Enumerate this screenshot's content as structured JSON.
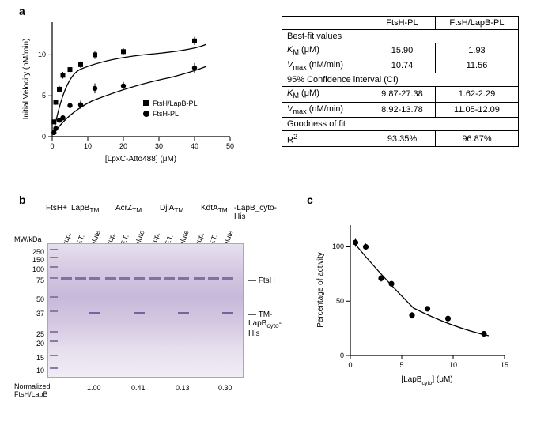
{
  "panelA": {
    "label": "a",
    "chart": {
      "type": "scatter",
      "xlabel": "[LpxC-Atto488] (μM)",
      "ylabel": "Initial Velocity (nM/min)",
      "xlim": [
        0,
        50
      ],
      "ylim": [
        0,
        14
      ],
      "xticks": [
        0,
        10,
        20,
        30,
        40,
        50
      ],
      "yticks": [
        0,
        5,
        10
      ],
      "label_fontsize": 10,
      "tick_fontsize": 9,
      "series": [
        {
          "name": "FtsH/LapB-PL",
          "marker": "square",
          "color": "#000000",
          "x": [
            0.5,
            1,
            2,
            3,
            5,
            8,
            12,
            20,
            40
          ],
          "y": [
            1.8,
            4.2,
            5.8,
            7.5,
            8.2,
            8.8,
            10.0,
            10.4,
            11.7
          ],
          "yerr": [
            0.3,
            0.3,
            0.4,
            0.4,
            0.3,
            0.4,
            0.5,
            0.4,
            0.5
          ]
        },
        {
          "name": "FtsH-PL",
          "marker": "circle",
          "color": "#000000",
          "x": [
            0.5,
            1,
            2,
            3,
            5,
            8,
            12,
            20,
            40
          ],
          "y": [
            0.5,
            1.0,
            2.0,
            2.3,
            3.8,
            3.9,
            5.9,
            6.2,
            8.4
          ],
          "yerr": [
            0.2,
            0.2,
            0.2,
            0.3,
            0.6,
            0.5,
            0.6,
            0.5,
            0.6
          ]
        }
      ],
      "legend_pos": "inside-right",
      "curve_color": "#000000",
      "background": "#ffffff"
    },
    "table": {
      "col_headers": [
        "",
        "FtsH-PL",
        "FtsH/LapB-PL"
      ],
      "sections": [
        {
          "title": "Best-fit values",
          "rows": [
            {
              "label_html": "K_M (μM)",
              "c1": "15.90",
              "c2": "1.93"
            },
            {
              "label_html": "V_max (nM/min)",
              "c1": "10.74",
              "c2": "11.56"
            }
          ]
        },
        {
          "title": "95% Confidence interval (CI)",
          "rows": [
            {
              "label_html": "K_M (μM)",
              "c1": "9.87-27.38",
              "c2": "1.62-2.29"
            },
            {
              "label_html": "V_max (nM/min)",
              "c1": "8.92-13.78",
              "c2": "11.05-12.09"
            }
          ]
        },
        {
          "title": "Goodness of fit",
          "rows": [
            {
              "label_html": "R²",
              "c1": "93.35%",
              "c2": "96.87%"
            }
          ]
        }
      ]
    }
  },
  "panelB": {
    "label": "b",
    "title_left": "MW/kDa",
    "title_top": "FtsH+",
    "groups": [
      "LapB_TM",
      "AcrZ_TM",
      "DjlA_TM",
      "KdtA_TM"
    ],
    "group_suffix": "-LapB_cyto-His",
    "lane_labels": [
      "sup.",
      "F.T.",
      "elute"
    ],
    "mw": [
      "250",
      "150",
      "100",
      "75",
      "50",
      "37",
      "25",
      "20",
      "15",
      "10"
    ],
    "annotations": [
      "FtsH",
      "TM-LapB_cyto-His"
    ],
    "normalized_label": "Normalized\nFtsH/LapB",
    "normalized_values": [
      "1.00",
      "0.41",
      "0.13",
      "0.30"
    ],
    "gel_color": "#c7b9da",
    "band_color": "#6b5b95"
  },
  "panelC": {
    "label": "c",
    "chart": {
      "type": "scatter",
      "xlabel": "[LapB_cyto] (μM)",
      "ylabel": "Percentage of activity",
      "xlim": [
        0,
        15
      ],
      "ylim": [
        0,
        120
      ],
      "xticks": [
        0,
        5,
        10,
        15
      ],
      "yticks": [
        0,
        50,
        100
      ],
      "label_fontsize": 10,
      "tick_fontsize": 9,
      "marker": "circle",
      "marker_color": "#000000",
      "x": [
        0.5,
        1.5,
        3,
        4,
        6,
        7.5,
        9.5,
        13
      ],
      "y": [
        104,
        100,
        71,
        66,
        37,
        43,
        34,
        20
      ],
      "yerr": [
        4,
        3,
        3,
        2,
        3,
        2,
        2,
        2
      ],
      "curve_color": "#000000",
      "background": "#ffffff"
    }
  }
}
